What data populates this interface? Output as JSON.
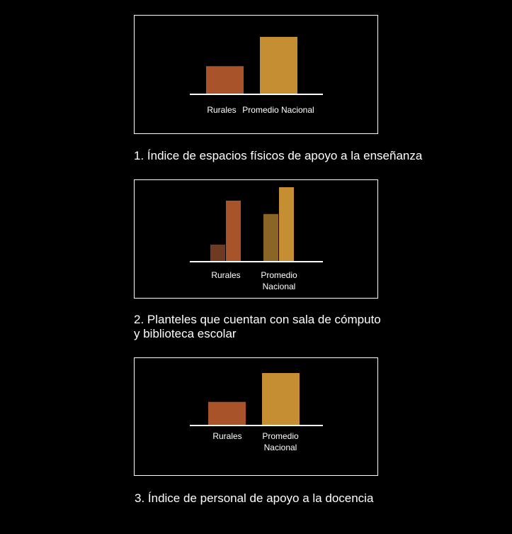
{
  "colors": {
    "background": "#000000",
    "frame": "#ffffff",
    "axis": "#ffffff",
    "rural": "#a9532b",
    "rural_dark": "#6e3a22",
    "national": "#c68e33",
    "national_dark": "#8a6526"
  },
  "chart_data": [
    {
      "type": "bar",
      "caption": "1. Índice de espacios físicos de apoyo a la enseñanza",
      "categories": [
        "Rurales",
        "Promedio Nacional"
      ],
      "values": [
        0.49,
        1.0
      ],
      "ylim": [
        0,
        1
      ],
      "grid": false
    },
    {
      "type": "bar",
      "caption_lines": [
        "2. Planteles que cuentan con sala de cómputo",
        "y biblioteca escolar"
      ],
      "categories": [
        [
          "Rurales"
        ],
        [
          "Promedio",
          "Nacional"
        ]
      ],
      "series": [
        {
          "values": [
            0.23,
            0.64
          ]
        },
        {
          "values": [
            0.82,
            1.0
          ]
        }
      ],
      "ylim": [
        0,
        1
      ],
      "grid": false
    },
    {
      "type": "bar",
      "caption": "3. Índice de personal de apoyo a la docencia",
      "categories": [
        [
          "Rurales"
        ],
        [
          "Promedio",
          "Nacional"
        ]
      ],
      "values": [
        0.45,
        1.0
      ],
      "ylim": [
        0,
        1
      ],
      "grid": false
    }
  ]
}
